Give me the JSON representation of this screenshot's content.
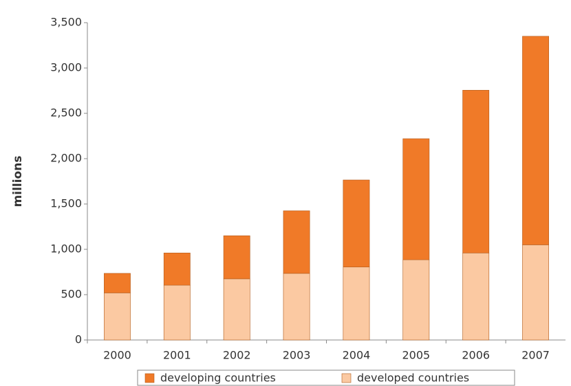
{
  "chart_data": {
    "type": "stacked_bar",
    "y_label": "millions",
    "categories": [
      "2000",
      "2001",
      "2002",
      "2003",
      "2004",
      "2005",
      "2006",
      "2007"
    ],
    "series": [
      {
        "name": "developing countries",
        "color": "#f07a28",
        "values": [
          215,
          355,
          475,
          690,
          960,
          1335,
          1795,
          2300
        ]
      },
      {
        "name": "developed countries",
        "color": "#fbc9a2",
        "values": [
          520,
          605,
          675,
          735,
          805,
          885,
          960,
          1050
        ]
      }
    ],
    "ylim": [
      0,
      3500
    ],
    "yticks": [
      0,
      500,
      {
        "value": 1000,
        "label": "1,000"
      },
      {
        "value": 1500,
        "label": "1,500"
      },
      {
        "value": 2000,
        "label": "2,000"
      },
      {
        "value": 2500,
        "label": "2,500"
      },
      {
        "value": 3000,
        "label": "3,000"
      },
      {
        "value": 3500,
        "label": "3,500"
      }
    ],
    "grid": false
  }
}
